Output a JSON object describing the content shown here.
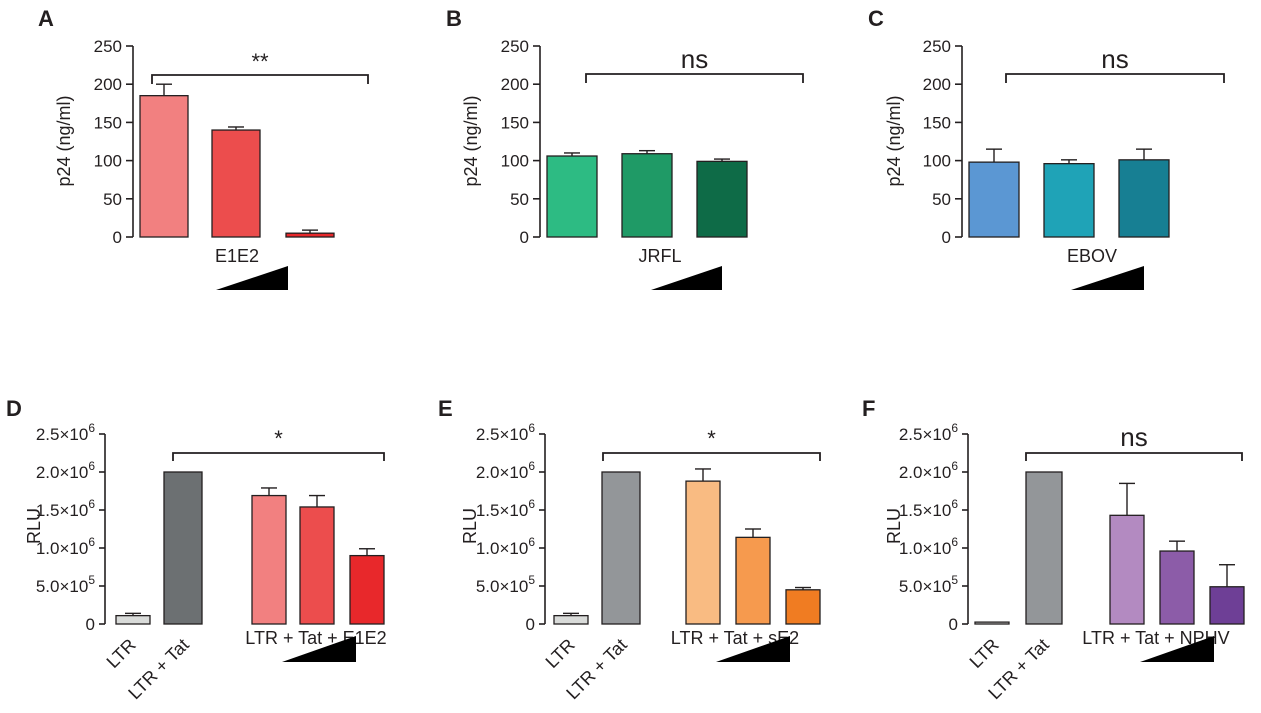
{
  "chart_data": [
    {
      "panel": "A",
      "type": "bar",
      "ylabel": "p24 (ng/ml)",
      "ylim": [
        0,
        250
      ],
      "yticks": [
        "0",
        "50",
        "100",
        "150",
        "200",
        "250"
      ],
      "group_label": "E1E2",
      "bars": [
        {
          "value": 185,
          "error": 15,
          "color": "#f28080"
        },
        {
          "value": 140,
          "error": 4,
          "color": "#ec4d4d"
        },
        {
          "value": 5,
          "error": 4,
          "color": "#e8282b"
        }
      ],
      "significance": "**"
    },
    {
      "panel": "B",
      "type": "bar",
      "ylabel": "p24 (ng/ml)",
      "ylim": [
        0,
        250
      ],
      "yticks": [
        "0",
        "50",
        "100",
        "150",
        "200",
        "250"
      ],
      "group_label": "JRFL",
      "bars": [
        {
          "value": 106,
          "error": 4,
          "color": "#2dbb83"
        },
        {
          "value": 109,
          "error": 4,
          "color": "#1f9a66"
        },
        {
          "value": 99,
          "error": 3,
          "color": "#0e6b47"
        }
      ],
      "significance": "ns"
    },
    {
      "panel": "C",
      "type": "bar",
      "ylabel": "p24 (ng/ml)",
      "ylim": [
        0,
        250
      ],
      "yticks": [
        "0",
        "50",
        "100",
        "150",
        "200",
        "250"
      ],
      "group_label": "EBOV",
      "bars": [
        {
          "value": 98,
          "error": 17,
          "color": "#5b97d3"
        },
        {
          "value": 96,
          "error": 5,
          "color": "#1fa3b7"
        },
        {
          "value": 101,
          "error": 14,
          "color": "#177f93"
        }
      ],
      "significance": "ns"
    },
    {
      "panel": "D",
      "type": "bar",
      "ylabel": "RLU",
      "ylim": [
        0,
        2500000
      ],
      "yticks": [
        {
          "mant": "0",
          "exp": ""
        },
        {
          "mant": "5.0×10",
          "exp": "5"
        },
        {
          "mant": "1.0×10",
          "exp": "6"
        },
        {
          "mant": "1.5×10",
          "exp": "6"
        },
        {
          "mant": "2.0×10",
          "exp": "6"
        },
        {
          "mant": "2.5×10",
          "exp": "6"
        }
      ],
      "categories": [
        "LTR",
        "LTR + Tat"
      ],
      "group_label": "LTR + Tat + E1E2",
      "bars": [
        {
          "value": 110000,
          "error": 30000,
          "color": "#d9dbd9"
        },
        {
          "value": 2000000,
          "error": 0,
          "color": "#6c7072"
        },
        {
          "value": 1690000,
          "error": 100000,
          "color": "#f28080"
        },
        {
          "value": 1540000,
          "error": 150000,
          "color": "#ec4d4d"
        },
        {
          "value": 900000,
          "error": 90000,
          "color": "#e8282b"
        }
      ],
      "significance": "*"
    },
    {
      "panel": "E",
      "type": "bar",
      "ylabel": "RLU",
      "ylim": [
        0,
        2500000
      ],
      "yticks": [
        {
          "mant": "0",
          "exp": ""
        },
        {
          "mant": "5.0×10",
          "exp": "5"
        },
        {
          "mant": "1.0×10",
          "exp": "6"
        },
        {
          "mant": "1.5×10",
          "exp": "6"
        },
        {
          "mant": "2.0×10",
          "exp": "6"
        },
        {
          "mant": "2.5×10",
          "exp": "6"
        }
      ],
      "categories": [
        "LTR",
        "LTR + Tat"
      ],
      "group_label": "LTR + Tat + sE2",
      "bars": [
        {
          "value": 110000,
          "error": 30000,
          "color": "#d9dbd9"
        },
        {
          "value": 2000000,
          "error": 0,
          "color": "#939699"
        },
        {
          "value": 1880000,
          "error": 160000,
          "color": "#f9bb82"
        },
        {
          "value": 1140000,
          "error": 110000,
          "color": "#f69a4e"
        },
        {
          "value": 450000,
          "error": 30000,
          "color": "#f07c22"
        }
      ],
      "significance": "*"
    },
    {
      "panel": "F",
      "type": "bar",
      "ylabel": "RLU",
      "ylim": [
        0,
        2500000
      ],
      "yticks": [
        {
          "mant": "0",
          "exp": ""
        },
        {
          "mant": "5.0×10",
          "exp": "5"
        },
        {
          "mant": "1.0×10",
          "exp": "6"
        },
        {
          "mant": "1.5×10",
          "exp": "6"
        },
        {
          "mant": "2.0×10",
          "exp": "6"
        },
        {
          "mant": "2.5×10",
          "exp": "6"
        }
      ],
      "categories": [
        "LTR",
        "LTR + Tat"
      ],
      "group_label": "LTR + Tat + NPHV",
      "bars": [
        {
          "value": 25000,
          "error": 0,
          "color": "#d9dbd9"
        },
        {
          "value": 2000000,
          "error": 0,
          "color": "#939699"
        },
        {
          "value": 1430000,
          "error": 420000,
          "color": "#b38ac1"
        },
        {
          "value": 960000,
          "error": 130000,
          "color": "#8c5ca8"
        },
        {
          "value": 490000,
          "error": 290000,
          "color": "#6e3f96"
        }
      ],
      "significance": "ns"
    }
  ]
}
